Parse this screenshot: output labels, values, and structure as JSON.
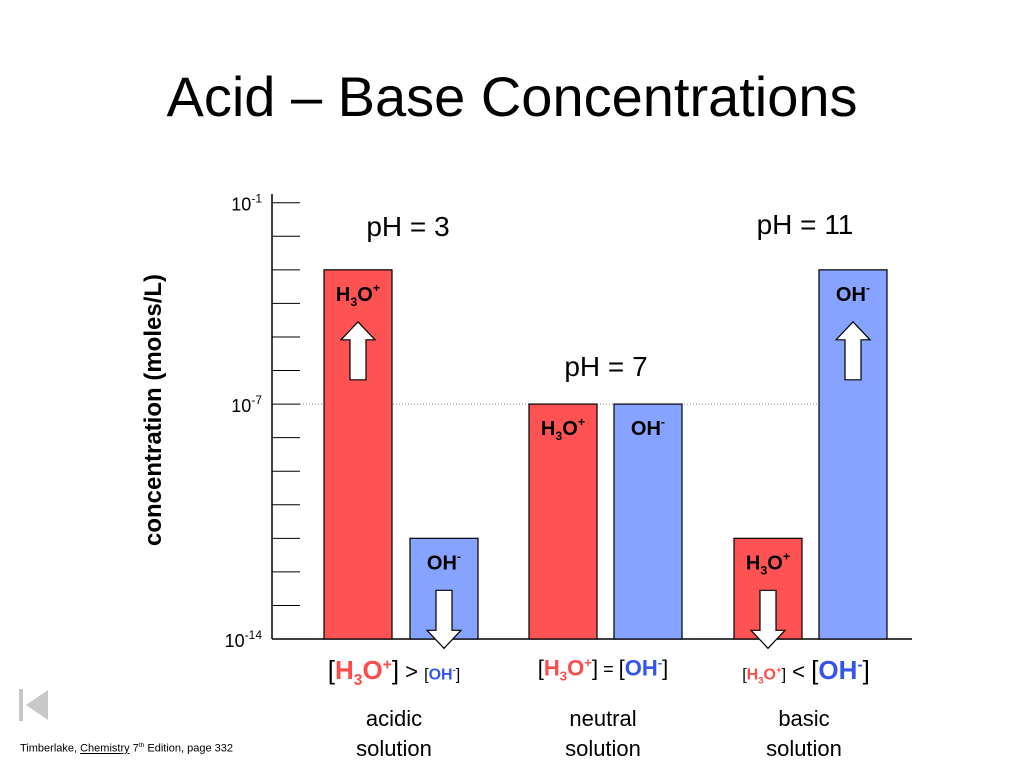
{
  "title": "Acid – Base Concentrations",
  "ylabel": "concentration (moles/L)",
  "colors": {
    "h3o": "#ff5252",
    "oh": "#85a3ff",
    "h3o_text": "#ff4b4b",
    "oh_text": "#3355ee"
  },
  "chart_data": {
    "type": "bar",
    "title": "Acid – Base Concentrations",
    "ylabel": "concentration (moles/L)",
    "scale": "log",
    "ylim": [
      -14,
      -0.8
    ],
    "y_ticks": [
      {
        "base": "10",
        "exp": "-1",
        "value": -1
      },
      {
        "base": "10",
        "exp": "-7",
        "value": -7
      },
      {
        "base": "10",
        "exp": "-14",
        "value": -14
      }
    ],
    "groups": [
      {
        "ph_label": "pH = 3",
        "solution": [
          "acidic",
          "solution"
        ],
        "bars": [
          {
            "ion": "H3O+",
            "sym": "H",
            "sub": "3",
            "tail": "O",
            "sup": "+",
            "exponent": -3,
            "color": "#ff5252",
            "arrow": "up"
          },
          {
            "ion": "OH-",
            "sym": "OH",
            "sub": "",
            "tail": "",
            "sup": "-",
            "exponent": -11,
            "color": "#85a3ff",
            "arrow": "down"
          }
        ],
        "comparison": {
          "left": "H3O+",
          "op": ">",
          "right": "OH-",
          "emphasis": "left"
        }
      },
      {
        "ph_label": "pH = 7",
        "solution": [
          "neutral",
          "solution"
        ],
        "bars": [
          {
            "ion": "H3O+",
            "sym": "H",
            "sub": "3",
            "tail": "O",
            "sup": "+",
            "exponent": -7,
            "color": "#ff5252",
            "arrow": "none"
          },
          {
            "ion": "OH-",
            "sym": "OH",
            "sub": "",
            "tail": "",
            "sup": "-",
            "exponent": -7,
            "color": "#85a3ff",
            "arrow": "none"
          }
        ],
        "comparison": {
          "left": "H3O+",
          "op": "=",
          "right": "OH-",
          "emphasis": "none"
        }
      },
      {
        "ph_label": "pH = 11",
        "solution": [
          "basic",
          "solution"
        ],
        "bars": [
          {
            "ion": "H3O+",
            "sym": "H",
            "sub": "3",
            "tail": "O",
            "sup": "+",
            "exponent": -11,
            "color": "#ff5252",
            "arrow": "down"
          },
          {
            "ion": "OH-",
            "sym": "OH",
            "sub": "",
            "tail": "",
            "sup": "-",
            "exponent": -3,
            "color": "#85a3ff",
            "arrow": "up"
          }
        ],
        "comparison": {
          "left": "H3O+",
          "op": "<",
          "right": "OH-",
          "emphasis": "right"
        }
      }
    ]
  },
  "footnote": {
    "author": "Timberlake, ",
    "book": "Chemistry",
    "edition_num": " 7",
    "edition_sup": "th",
    "rest": " Edition, page 332"
  },
  "nav_icon": "first-slide-icon"
}
